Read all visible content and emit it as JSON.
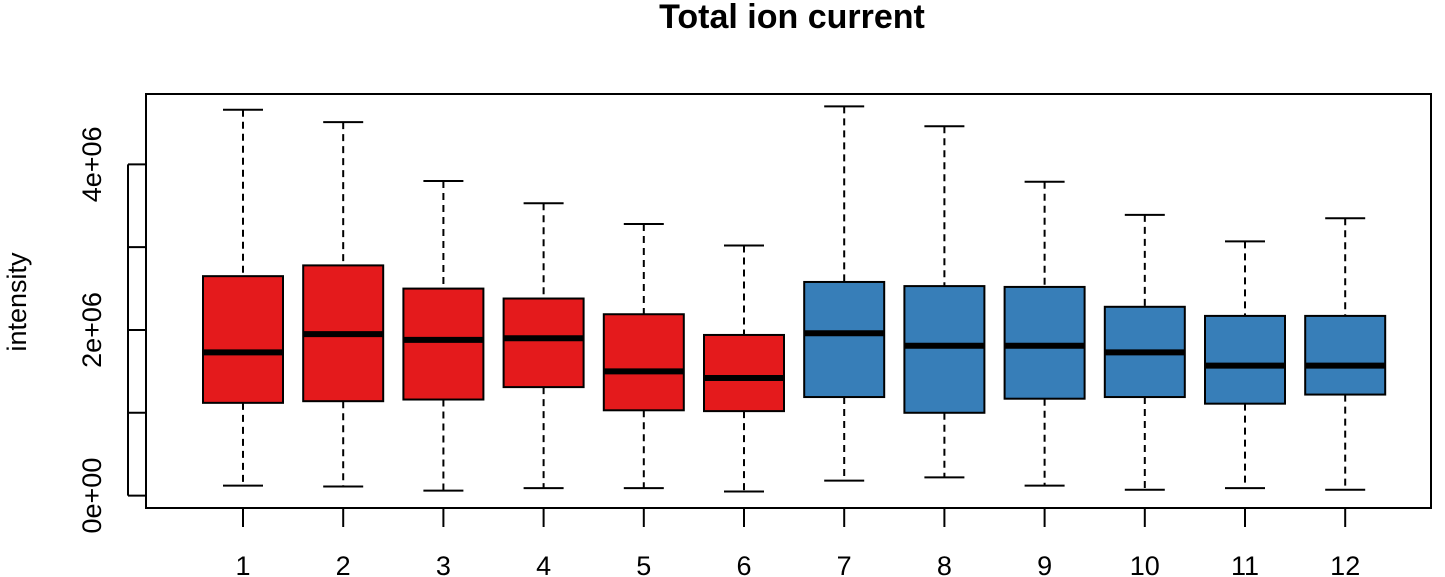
{
  "chart_data": {
    "type": "boxplot",
    "title": "Total ion current",
    "xlabel": "",
    "ylabel": "intensity",
    "ylim": [
      -150000,
      4850000
    ],
    "y_ticks": [
      0,
      1000000,
      2000000,
      3000000,
      4000000
    ],
    "y_tick_labels": [
      "0e+00",
      "",
      "2e+06",
      "",
      "4e+06"
    ],
    "grid": false,
    "colors": {
      "group_a": "#E41A1C",
      "group_b": "#377EB8"
    },
    "categories": [
      "1",
      "2",
      "3",
      "4",
      "5",
      "6",
      "7",
      "8",
      "9",
      "10",
      "11",
      "12"
    ],
    "boxes": [
      {
        "label": "1",
        "min": 120000,
        "q1": 1120000,
        "median": 1730000,
        "q3": 2650000,
        "max": 4660000,
        "color": "#E41A1C"
      },
      {
        "label": "2",
        "min": 110000,
        "q1": 1140000,
        "median": 1950000,
        "q3": 2780000,
        "max": 4510000,
        "color": "#E41A1C"
      },
      {
        "label": "3",
        "min": 60000,
        "q1": 1160000,
        "median": 1880000,
        "q3": 2500000,
        "max": 3800000,
        "color": "#E41A1C"
      },
      {
        "label": "4",
        "min": 90000,
        "q1": 1310000,
        "median": 1900000,
        "q3": 2380000,
        "max": 3530000,
        "color": "#E41A1C"
      },
      {
        "label": "5",
        "min": 90000,
        "q1": 1030000,
        "median": 1500000,
        "q3": 2190000,
        "max": 3280000,
        "color": "#E41A1C"
      },
      {
        "label": "6",
        "min": 50000,
        "q1": 1020000,
        "median": 1420000,
        "q3": 1940000,
        "max": 3020000,
        "color": "#E41A1C"
      },
      {
        "label": "7",
        "min": 180000,
        "q1": 1190000,
        "median": 1960000,
        "q3": 2580000,
        "max": 4700000,
        "color": "#377EB8"
      },
      {
        "label": "8",
        "min": 220000,
        "q1": 1000000,
        "median": 1810000,
        "q3": 2530000,
        "max": 4460000,
        "color": "#377EB8"
      },
      {
        "label": "9",
        "min": 120000,
        "q1": 1170000,
        "median": 1810000,
        "q3": 2520000,
        "max": 3790000,
        "color": "#377EB8"
      },
      {
        "label": "10",
        "min": 70000,
        "q1": 1190000,
        "median": 1730000,
        "q3": 2280000,
        "max": 3390000,
        "color": "#377EB8"
      },
      {
        "label": "11",
        "min": 90000,
        "q1": 1110000,
        "median": 1570000,
        "q3": 2170000,
        "max": 3070000,
        "color": "#377EB8"
      },
      {
        "label": "12",
        "min": 70000,
        "q1": 1220000,
        "median": 1570000,
        "q3": 2170000,
        "max": 3350000,
        "color": "#377EB8"
      }
    ]
  }
}
